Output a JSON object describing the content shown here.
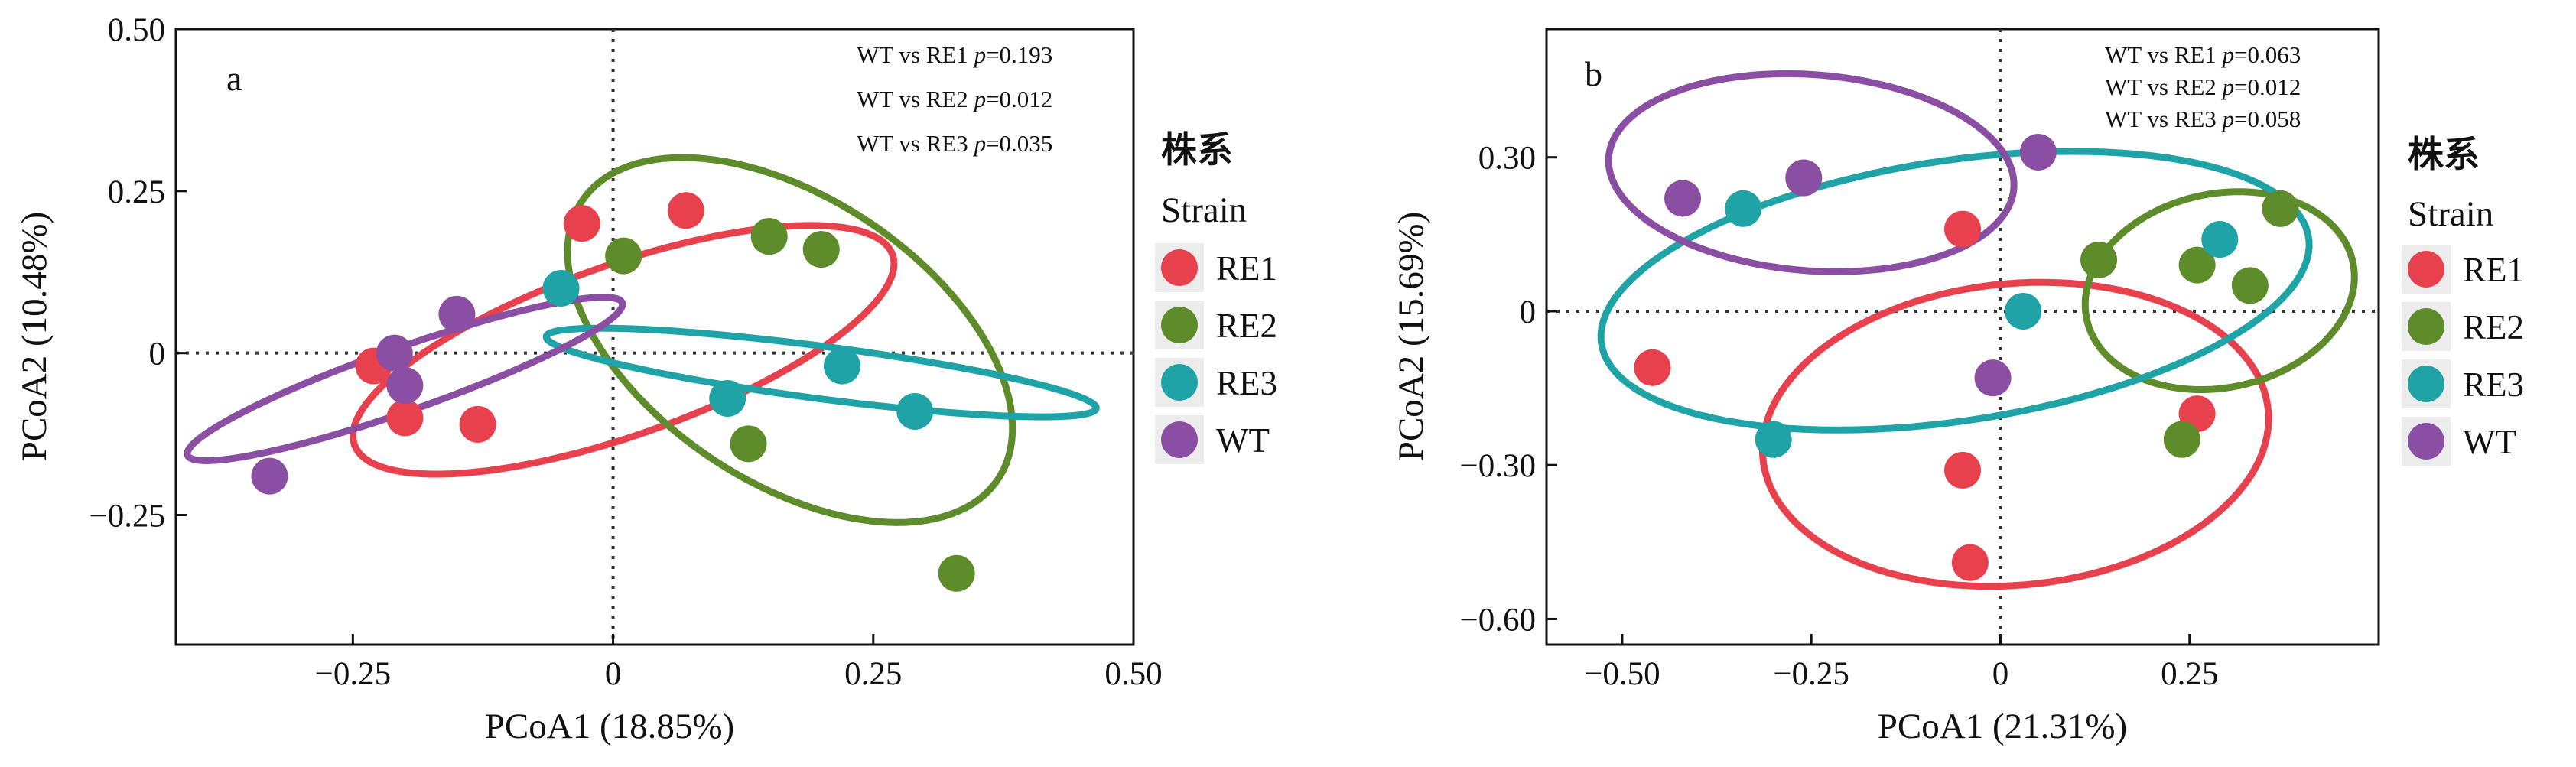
{
  "colors": {
    "RE1": "#E8414E",
    "RE2": "#5E8C2A",
    "RE3": "#1FA3A6",
    "WT": "#8A4FA3"
  },
  "legend": {
    "title": "株系",
    "subtitle": "Strain",
    "items": [
      "RE1",
      "RE2",
      "RE3",
      "WT"
    ]
  },
  "chart_data": [
    {
      "type": "scatter",
      "panel_label": "a",
      "xlabel": "PCoA1 (18.85%)",
      "ylabel": "PCoA2 (10.48%)",
      "xlim": [
        -0.42,
        0.5
      ],
      "ylim": [
        -0.45,
        0.5
      ],
      "xticks": [
        -0.25,
        0,
        0.25,
        0.5
      ],
      "xtick_labels": [
        "−0.25",
        "0",
        "0.25",
        "0.50"
      ],
      "yticks": [
        -0.25,
        0,
        0.25,
        0.5
      ],
      "ytick_labels": [
        "−0.25",
        "0",
        "0.25",
        "0.50"
      ],
      "reference_lines": {
        "x": 0,
        "y": 0
      },
      "stats": [
        {
          "label": "WT vs RE1 ",
          "p": "=0.193"
        },
        {
          "label": "WT vs RE2 ",
          "p": "=0.012"
        },
        {
          "label": "WT vs RE3 ",
          "p": "=0.035"
        }
      ],
      "series": [
        {
          "name": "RE1",
          "points": [
            [
              -0.03,
              0.2
            ],
            [
              0.07,
              0.22
            ],
            [
              -0.23,
              -0.02
            ],
            [
              -0.2,
              -0.1
            ],
            [
              -0.13,
              -0.11
            ]
          ],
          "ellipse": {
            "cx": 0.01,
            "cy": 0.005,
            "rx": 0.3,
            "ry": 0.12,
            "angle_deg": 33
          }
        },
        {
          "name": "RE2",
          "points": [
            [
              0.01,
              0.15
            ],
            [
              0.15,
              0.18
            ],
            [
              0.2,
              0.16
            ],
            [
              0.13,
              -0.14
            ],
            [
              0.33,
              -0.34
            ]
          ],
          "ellipse": {
            "cx": 0.17,
            "cy": 0.02,
            "rx": 0.31,
            "ry": 0.17,
            "angle_deg": -60
          }
        },
        {
          "name": "RE3",
          "points": [
            [
              -0.05,
              0.1
            ],
            [
              0.11,
              -0.07
            ],
            [
              0.22,
              -0.02
            ],
            [
              0.29,
              -0.09
            ]
          ],
          "ellipse": {
            "cx": 0.2,
            "cy": -0.03,
            "rx": 0.27,
            "ry": 0.04,
            "angle_deg": -12
          }
        },
        {
          "name": "WT",
          "points": [
            [
              -0.21,
              0.0
            ],
            [
              -0.2,
              -0.05
            ],
            [
              -0.15,
              0.06
            ],
            [
              -0.33,
              -0.19
            ]
          ],
          "ellipse": {
            "cx": -0.2,
            "cy": -0.04,
            "rx": 0.24,
            "ry": 0.045,
            "angle_deg": 30
          }
        }
      ]
    },
    {
      "type": "scatter",
      "panel_label": "b",
      "xlabel": "PCoA1 (21.31%)",
      "ylabel": "PCoA2 (15.69%)",
      "xlim": [
        -0.6,
        0.5
      ],
      "ylim": [
        -0.65,
        0.55
      ],
      "xticks": [
        -0.5,
        -0.25,
        0,
        0.25
      ],
      "xtick_labels": [
        "−0.50",
        "−0.25",
        "0",
        "0.25"
      ],
      "yticks": [
        -0.6,
        -0.3,
        0,
        0.3
      ],
      "ytick_labels": [
        "−0.60",
        "−0.30",
        "0",
        "0.30"
      ],
      "reference_lines": {
        "x": 0,
        "y": 0
      },
      "stats": [
        {
          "label": "WT vs RE1 ",
          "p": "=0.063"
        },
        {
          "label": "WT vs RE2 ",
          "p": "=0.012"
        },
        {
          "label": "WT vs RE3 ",
          "p": "=0.058"
        }
      ],
      "series": [
        {
          "name": "RE1",
          "points": [
            [
              -0.05,
              0.16
            ],
            [
              -0.46,
              -0.11
            ],
            [
              -0.05,
              -0.31
            ],
            [
              -0.04,
              -0.49
            ],
            [
              0.26,
              -0.2
            ]
          ],
          "ellipse": {
            "cx": 0.02,
            "cy": -0.24,
            "rx": 0.34,
            "ry": 0.29,
            "angle_deg": 20
          }
        },
        {
          "name": "RE2",
          "points": [
            [
              0.13,
              0.1
            ],
            [
              0.37,
              0.2
            ],
            [
              0.26,
              0.09
            ],
            [
              0.33,
              0.05
            ],
            [
              0.24,
              -0.25
            ]
          ],
          "ellipse": {
            "cx": 0.29,
            "cy": 0.04,
            "rx": 0.17,
            "ry": 0.2,
            "angle_deg": -30
          }
        },
        {
          "name": "RE3",
          "points": [
            [
              -0.34,
              0.2
            ],
            [
              0.03,
              0.0
            ],
            [
              0.29,
              0.14
            ],
            [
              -0.3,
              -0.25
            ]
          ],
          "ellipse": {
            "cx": -0.06,
            "cy": 0.04,
            "rx": 0.48,
            "ry": 0.25,
            "angle_deg": 15
          }
        },
        {
          "name": "WT",
          "points": [
            [
              -0.42,
              0.22
            ],
            [
              -0.26,
              0.26
            ],
            [
              0.05,
              0.31
            ],
            [
              -0.01,
              -0.13
            ]
          ],
          "ellipse": {
            "cx": -0.25,
            "cy": 0.27,
            "rx": 0.27,
            "ry": 0.19,
            "angle_deg": -10
          }
        }
      ]
    }
  ]
}
